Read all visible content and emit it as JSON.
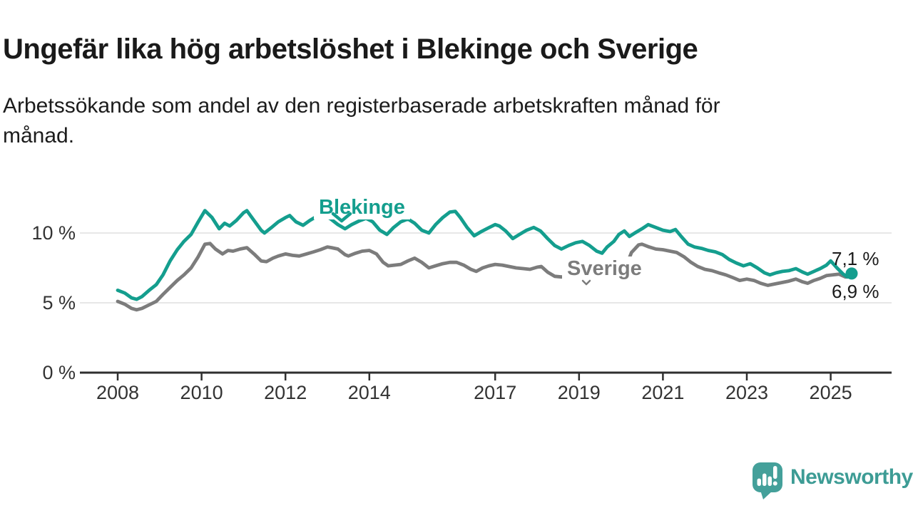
{
  "header": {
    "title": "Ungefär lika hög arbetslöshet i Blekinge och Sverige",
    "subtitle_line1": "Arbetssökande som andel av den registerbaserade arbetskraften månad för",
    "subtitle_line2": "månad."
  },
  "colors": {
    "blekinge": "#149e8e",
    "sverige": "#7c7c7c",
    "axis": "#2f2f2f",
    "grid": "#dfdfdf",
    "text": "#1a1a1a",
    "tick_text": "#333333",
    "logo": "#44a09a",
    "wordmark": "#3d9c95"
  },
  "footer": {
    "brand": "Newsworthy"
  },
  "chart_data": {
    "type": "line",
    "title": "Ungefär lika hög arbetslöshet i Blekinge och Sverige",
    "subtitle": "Arbetssökande som andel av den registerbaserade arbetskraften månad för månad.",
    "xlabel": "",
    "ylabel": "",
    "y_unit": "% av registerbaserad arbetskraft",
    "x_unit": "år (månadsvisa datapunkter)",
    "xlim": [
      2007.9,
      2026.5
    ],
    "ylim": [
      0,
      12.5
    ],
    "grid": "horizontal",
    "legend_position": "inline-annotations",
    "yticks": [
      {
        "value": 0,
        "label": "0 %"
      },
      {
        "value": 5,
        "label": "5 %"
      },
      {
        "value": 10,
        "label": "10 %"
      }
    ],
    "xticks": [
      {
        "value": 2008,
        "label": "2008"
      },
      {
        "value": 2010,
        "label": "2010"
      },
      {
        "value": 2012,
        "label": "2012"
      },
      {
        "value": 2014,
        "label": "2014"
      },
      {
        "value": 2017,
        "label": "2017"
      },
      {
        "value": 2019,
        "label": "2019"
      },
      {
        "value": 2021,
        "label": "2021"
      },
      {
        "value": 2023,
        "label": "2023"
      },
      {
        "value": 2025,
        "label": "2025"
      }
    ],
    "series": [
      {
        "name": "Blekinge",
        "color": "#149e8e",
        "end_value": 7.1,
        "end_label": "7,1 %",
        "end_dot": true,
        "points": [
          [
            2008.0,
            5.9
          ],
          [
            2008.17,
            5.7
          ],
          [
            2008.33,
            5.35
          ],
          [
            2008.45,
            5.25
          ],
          [
            2008.58,
            5.45
          ],
          [
            2008.75,
            5.9
          ],
          [
            2008.92,
            6.3
          ],
          [
            2009.08,
            7.0
          ],
          [
            2009.25,
            8.0
          ],
          [
            2009.42,
            8.8
          ],
          [
            2009.58,
            9.4
          ],
          [
            2009.75,
            9.9
          ],
          [
            2009.92,
            10.8
          ],
          [
            2010.08,
            11.6
          ],
          [
            2010.25,
            11.1
          ],
          [
            2010.42,
            10.3
          ],
          [
            2010.55,
            10.7
          ],
          [
            2010.67,
            10.5
          ],
          [
            2010.83,
            10.9
          ],
          [
            2011.0,
            11.45
          ],
          [
            2011.08,
            11.6
          ],
          [
            2011.25,
            10.9
          ],
          [
            2011.42,
            10.2
          ],
          [
            2011.5,
            10.0
          ],
          [
            2011.67,
            10.4
          ],
          [
            2011.83,
            10.8
          ],
          [
            2012.0,
            11.1
          ],
          [
            2012.1,
            11.25
          ],
          [
            2012.25,
            10.8
          ],
          [
            2012.42,
            10.55
          ],
          [
            2012.58,
            10.9
          ],
          [
            2012.75,
            11.2
          ],
          [
            2012.92,
            11.3
          ],
          [
            2013.08,
            11.0
          ],
          [
            2013.25,
            10.6
          ],
          [
            2013.42,
            10.3
          ],
          [
            2013.58,
            10.6
          ],
          [
            2013.75,
            10.85
          ],
          [
            2013.92,
            11.05
          ],
          [
            2014.08,
            10.8
          ],
          [
            2014.25,
            10.2
          ],
          [
            2014.42,
            9.9
          ],
          [
            2014.58,
            10.4
          ],
          [
            2014.75,
            10.8
          ],
          [
            2014.92,
            11.0
          ],
          [
            2015.08,
            10.7
          ],
          [
            2015.25,
            10.2
          ],
          [
            2015.42,
            10.0
          ],
          [
            2015.58,
            10.6
          ],
          [
            2015.75,
            11.1
          ],
          [
            2015.92,
            11.5
          ],
          [
            2016.05,
            11.55
          ],
          [
            2016.17,
            11.1
          ],
          [
            2016.33,
            10.4
          ],
          [
            2016.5,
            9.8
          ],
          [
            2016.67,
            10.1
          ],
          [
            2016.83,
            10.35
          ],
          [
            2017.0,
            10.6
          ],
          [
            2017.1,
            10.5
          ],
          [
            2017.25,
            10.15
          ],
          [
            2017.42,
            9.6
          ],
          [
            2017.58,
            9.9
          ],
          [
            2017.75,
            10.2
          ],
          [
            2017.92,
            10.4
          ],
          [
            2018.08,
            10.15
          ],
          [
            2018.25,
            9.6
          ],
          [
            2018.42,
            9.1
          ],
          [
            2018.58,
            8.85
          ],
          [
            2018.75,
            9.1
          ],
          [
            2018.92,
            9.3
          ],
          [
            2019.08,
            9.4
          ],
          [
            2019.25,
            9.1
          ],
          [
            2019.42,
            8.7
          ],
          [
            2019.55,
            8.55
          ],
          [
            2019.67,
            9.0
          ],
          [
            2019.83,
            9.4
          ],
          [
            2019.95,
            9.9
          ],
          [
            2020.08,
            10.15
          ],
          [
            2020.2,
            9.75
          ],
          [
            2020.33,
            10.0
          ],
          [
            2020.5,
            10.3
          ],
          [
            2020.65,
            10.6
          ],
          [
            2020.83,
            10.4
          ],
          [
            2021.0,
            10.2
          ],
          [
            2021.17,
            10.1
          ],
          [
            2021.3,
            10.25
          ],
          [
            2021.45,
            9.7
          ],
          [
            2021.6,
            9.2
          ],
          [
            2021.75,
            9.0
          ],
          [
            2021.92,
            8.9
          ],
          [
            2022.08,
            8.75
          ],
          [
            2022.25,
            8.65
          ],
          [
            2022.42,
            8.45
          ],
          [
            2022.58,
            8.1
          ],
          [
            2022.75,
            7.85
          ],
          [
            2022.92,
            7.65
          ],
          [
            2023.08,
            7.8
          ],
          [
            2023.25,
            7.5
          ],
          [
            2023.42,
            7.15
          ],
          [
            2023.55,
            7.0
          ],
          [
            2023.7,
            7.15
          ],
          [
            2023.85,
            7.25
          ],
          [
            2024.0,
            7.3
          ],
          [
            2024.17,
            7.45
          ],
          [
            2024.33,
            7.2
          ],
          [
            2024.45,
            7.05
          ],
          [
            2024.6,
            7.25
          ],
          [
            2024.75,
            7.45
          ],
          [
            2024.9,
            7.7
          ],
          [
            2025.0,
            8.0
          ],
          [
            2025.15,
            7.5
          ],
          [
            2025.3,
            7.05
          ],
          [
            2025.4,
            6.85
          ],
          [
            2025.5,
            7.1
          ]
        ]
      },
      {
        "name": "Sverige",
        "color": "#7c7c7c",
        "end_value": 6.9,
        "end_label": "6,9 %",
        "end_dot": false,
        "points": [
          [
            2008.0,
            5.1
          ],
          [
            2008.17,
            4.9
          ],
          [
            2008.33,
            4.6
          ],
          [
            2008.45,
            4.5
          ],
          [
            2008.58,
            4.6
          ],
          [
            2008.75,
            4.85
          ],
          [
            2008.92,
            5.1
          ],
          [
            2009.08,
            5.6
          ],
          [
            2009.25,
            6.1
          ],
          [
            2009.42,
            6.6
          ],
          [
            2009.58,
            7.0
          ],
          [
            2009.75,
            7.5
          ],
          [
            2009.92,
            8.3
          ],
          [
            2010.08,
            9.2
          ],
          [
            2010.2,
            9.25
          ],
          [
            2010.33,
            8.85
          ],
          [
            2010.5,
            8.5
          ],
          [
            2010.63,
            8.75
          ],
          [
            2010.75,
            8.7
          ],
          [
            2010.92,
            8.85
          ],
          [
            2011.08,
            8.95
          ],
          [
            2011.25,
            8.5
          ],
          [
            2011.42,
            8.0
          ],
          [
            2011.55,
            7.95
          ],
          [
            2011.7,
            8.2
          ],
          [
            2011.83,
            8.35
          ],
          [
            2012.0,
            8.5
          ],
          [
            2012.17,
            8.4
          ],
          [
            2012.33,
            8.35
          ],
          [
            2012.5,
            8.5
          ],
          [
            2012.67,
            8.65
          ],
          [
            2012.83,
            8.8
          ],
          [
            2013.0,
            9.0
          ],
          [
            2013.1,
            8.95
          ],
          [
            2013.25,
            8.85
          ],
          [
            2013.42,
            8.45
          ],
          [
            2013.5,
            8.35
          ],
          [
            2013.67,
            8.55
          ],
          [
            2013.83,
            8.7
          ],
          [
            2014.0,
            8.75
          ],
          [
            2014.17,
            8.5
          ],
          [
            2014.33,
            7.9
          ],
          [
            2014.45,
            7.65
          ],
          [
            2014.6,
            7.7
          ],
          [
            2014.75,
            7.75
          ],
          [
            2014.92,
            8.0
          ],
          [
            2015.08,
            8.2
          ],
          [
            2015.25,
            7.9
          ],
          [
            2015.42,
            7.5
          ],
          [
            2015.58,
            7.65
          ],
          [
            2015.75,
            7.8
          ],
          [
            2015.92,
            7.9
          ],
          [
            2016.08,
            7.9
          ],
          [
            2016.25,
            7.7
          ],
          [
            2016.42,
            7.4
          ],
          [
            2016.55,
            7.25
          ],
          [
            2016.7,
            7.5
          ],
          [
            2016.85,
            7.65
          ],
          [
            2017.0,
            7.75
          ],
          [
            2017.17,
            7.7
          ],
          [
            2017.33,
            7.6
          ],
          [
            2017.5,
            7.5
          ],
          [
            2017.67,
            7.45
          ],
          [
            2017.83,
            7.4
          ],
          [
            2018.0,
            7.55
          ],
          [
            2018.1,
            7.6
          ],
          [
            2018.25,
            7.2
          ],
          [
            2018.42,
            6.9
          ],
          [
            2018.58,
            6.85
          ],
          [
            2018.75,
            6.9
          ],
          [
            2018.92,
            6.9
          ],
          [
            2019.08,
            7.0
          ],
          [
            2019.25,
            6.9
          ],
          [
            2019.42,
            6.85
          ],
          [
            2019.58,
            7.0
          ],
          [
            2019.75,
            7.1
          ],
          [
            2019.92,
            7.0
          ],
          [
            2020.08,
            7.3
          ],
          [
            2020.25,
            8.6
          ],
          [
            2020.42,
            9.15
          ],
          [
            2020.5,
            9.2
          ],
          [
            2020.67,
            9.0
          ],
          [
            2020.83,
            8.85
          ],
          [
            2021.0,
            8.8
          ],
          [
            2021.17,
            8.7
          ],
          [
            2021.33,
            8.6
          ],
          [
            2021.5,
            8.3
          ],
          [
            2021.67,
            7.9
          ],
          [
            2021.83,
            7.6
          ],
          [
            2022.0,
            7.4
          ],
          [
            2022.17,
            7.3
          ],
          [
            2022.33,
            7.15
          ],
          [
            2022.5,
            7.0
          ],
          [
            2022.67,
            6.8
          ],
          [
            2022.83,
            6.6
          ],
          [
            2023.0,
            6.7
          ],
          [
            2023.17,
            6.6
          ],
          [
            2023.33,
            6.4
          ],
          [
            2023.5,
            6.25
          ],
          [
            2023.67,
            6.35
          ],
          [
            2023.83,
            6.45
          ],
          [
            2024.0,
            6.55
          ],
          [
            2024.17,
            6.7
          ],
          [
            2024.33,
            6.5
          ],
          [
            2024.45,
            6.4
          ],
          [
            2024.6,
            6.6
          ],
          [
            2024.75,
            6.75
          ],
          [
            2024.9,
            6.95
          ],
          [
            2025.05,
            7.0
          ],
          [
            2025.2,
            7.05
          ],
          [
            2025.35,
            6.85
          ],
          [
            2025.5,
            6.9
          ]
        ]
      }
    ]
  }
}
